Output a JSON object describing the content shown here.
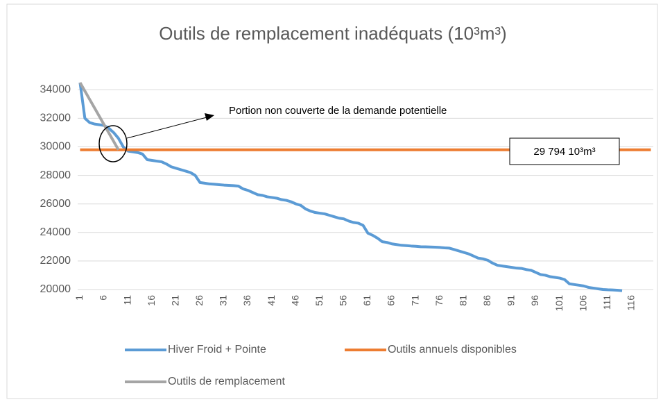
{
  "chart_data": {
    "type": "line",
    "title": "Outils de remplacement inadéquats (10³m³)",
    "categories": [
      "1",
      null,
      null,
      null,
      null,
      "6",
      null,
      null,
      null,
      null,
      "11",
      null,
      null,
      null,
      null,
      "16",
      null,
      null,
      null,
      null,
      "21",
      null,
      null,
      null,
      null,
      "26",
      null,
      null,
      null,
      null,
      "31",
      null,
      null,
      null,
      null,
      "36",
      null,
      null,
      null,
      null,
      "41",
      null,
      null,
      null,
      null,
      "46",
      null,
      null,
      null,
      null,
      "51",
      null,
      null,
      null,
      null,
      "56",
      null,
      null,
      null,
      null,
      "61",
      null,
      null,
      null,
      null,
      "66",
      null,
      null,
      null,
      null,
      "71",
      null,
      null,
      null,
      null,
      "76",
      null,
      null,
      null,
      null,
      "81",
      null,
      null,
      null,
      null,
      "86",
      null,
      null,
      null,
      null,
      "91",
      null,
      null,
      null,
      null,
      "96",
      null,
      null,
      null,
      null,
      "101",
      null,
      null,
      null,
      null,
      "106",
      null,
      null,
      null,
      null,
      "111",
      null,
      null,
      null,
      null,
      "116",
      null,
      null,
      null,
      null
    ],
    "series": [
      {
        "name": "Hiver Froid + Pointe",
        "color": "#5b9bd5",
        "values": [
          34500,
          32000,
          31700,
          31600,
          31550,
          31500,
          31300,
          31000,
          30600,
          30000,
          29700,
          29650,
          29600,
          29500,
          29100,
          29050,
          29000,
          28950,
          28800,
          28600,
          28500,
          28400,
          28300,
          28200,
          28000,
          27500,
          27450,
          27400,
          27380,
          27350,
          27320,
          27300,
          27280,
          27250,
          27050,
          26950,
          26800,
          26650,
          26600,
          26500,
          26450,
          26400,
          26300,
          26250,
          26150,
          26000,
          25900,
          25650,
          25500,
          25400,
          25350,
          25300,
          25200,
          25100,
          25000,
          24950,
          24800,
          24700,
          24650,
          24500,
          23950,
          23800,
          23600,
          23350,
          23300,
          23200,
          23150,
          23100,
          23080,
          23050,
          23030,
          23000,
          22990,
          22980,
          22970,
          22950,
          22920,
          22900,
          22800,
          22700,
          22600,
          22500,
          22350,
          22200,
          22150,
          22050,
          21850,
          21700,
          21650,
          21600,
          21550,
          21500,
          21480,
          21400,
          21350,
          21200,
          21050,
          21000,
          20900,
          20850,
          20800,
          20700,
          20400,
          20350,
          20300,
          20250,
          20150,
          20100,
          20050,
          20000,
          19980,
          19970,
          19950,
          19920,
          null,
          null,
          null,
          null,
          null,
          null
        ]
      },
      {
        "name": "Outils annuels disponibles",
        "color": "#ed7d31",
        "values": [
          29794,
          29794,
          29794,
          29794,
          29794,
          29794,
          29794,
          29794,
          29794,
          29794,
          29794,
          29794,
          29794,
          29794,
          29794,
          29794,
          29794,
          29794,
          29794,
          29794,
          29794,
          29794,
          29794,
          29794,
          29794,
          29794,
          29794,
          29794,
          29794,
          29794,
          29794,
          29794,
          29794,
          29794,
          29794,
          29794,
          29794,
          29794,
          29794,
          29794,
          29794,
          29794,
          29794,
          29794,
          29794,
          29794,
          29794,
          29794,
          29794,
          29794,
          29794,
          29794,
          29794,
          29794,
          29794,
          29794,
          29794,
          29794,
          29794,
          29794,
          29794,
          29794,
          29794,
          29794,
          29794,
          29794,
          29794,
          29794,
          29794,
          29794,
          29794,
          29794,
          29794,
          29794,
          29794,
          29794,
          29794,
          29794,
          29794,
          29794,
          29794,
          29794,
          29794,
          29794,
          29794,
          29794,
          29794,
          29794,
          29794,
          29794,
          29794,
          29794,
          29794,
          29794,
          29794,
          29794,
          29794,
          29794,
          29794,
          29794,
          29794,
          29794,
          29794,
          29794,
          29794,
          29794,
          29794,
          29794,
          29794,
          29794,
          29794,
          29794,
          29794,
          29794,
          29794,
          29794,
          29794,
          29794,
          29794,
          29794
        ]
      },
      {
        "name": "Outils de remplacement",
        "color": "#a5a5a5",
        "values": [
          34500,
          33912,
          33324,
          32735,
          32147,
          31559,
          30971,
          30382,
          29794,
          null,
          null,
          null,
          null,
          null,
          null,
          null,
          null,
          null,
          null,
          null,
          null,
          null,
          null,
          null,
          null,
          null,
          null,
          null,
          null,
          null,
          null,
          null,
          null,
          null,
          null,
          null,
          null,
          null,
          null,
          null,
          null,
          null,
          null,
          null,
          null,
          null,
          null,
          null,
          null,
          null,
          null,
          null,
          null,
          null,
          null,
          null,
          null,
          null,
          null,
          null,
          null,
          null,
          null,
          null,
          null,
          null,
          null,
          null,
          null,
          null,
          null,
          null,
          null,
          null,
          null,
          null,
          null,
          null,
          null,
          null,
          null,
          null,
          null,
          null,
          null,
          null,
          null,
          null,
          null,
          null,
          null,
          null,
          null,
          null,
          null,
          null,
          null,
          null,
          null,
          null,
          null,
          null,
          null,
          null,
          null,
          null,
          null,
          null,
          null,
          null,
          null,
          null,
          null,
          null,
          null,
          null,
          null,
          null,
          null,
          null
        ]
      }
    ],
    "ylim": [
      20000,
      35000
    ],
    "yticks": [
      20000,
      22000,
      24000,
      26000,
      28000,
      30000,
      32000,
      34000
    ],
    "grid": true,
    "legend": "bottom",
    "annotations": [
      {
        "text": "Portion non couverte de la demande potentielle"
      },
      {
        "text": "29 794 10³m³"
      }
    ]
  }
}
